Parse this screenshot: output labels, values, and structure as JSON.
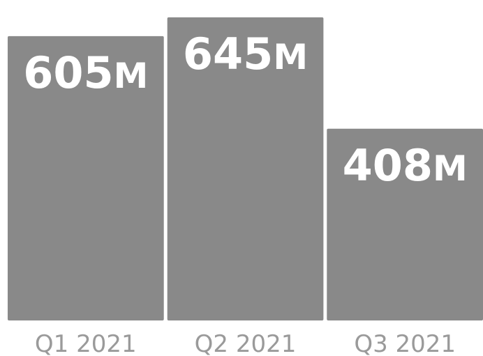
{
  "chart_data": {
    "type": "bar",
    "categories": [
      "Q1 2021",
      "Q2 2021",
      "Q3 2021"
    ],
    "values": [
      605,
      645,
      408
    ],
    "value_labels": [
      {
        "number": "605",
        "unit": "M"
      },
      {
        "number": "645",
        "unit": "M"
      },
      {
        "number": "408",
        "unit": "M"
      }
    ],
    "title": "",
    "xlabel": "",
    "ylabel": "",
    "ylim": [
      0,
      670
    ],
    "grid": false,
    "legend": "none",
    "colors": {
      "bar": "#898989",
      "value_label": "#ffffff",
      "tick_label": "#9a9a9a",
      "background": "#ffffff"
    }
  }
}
